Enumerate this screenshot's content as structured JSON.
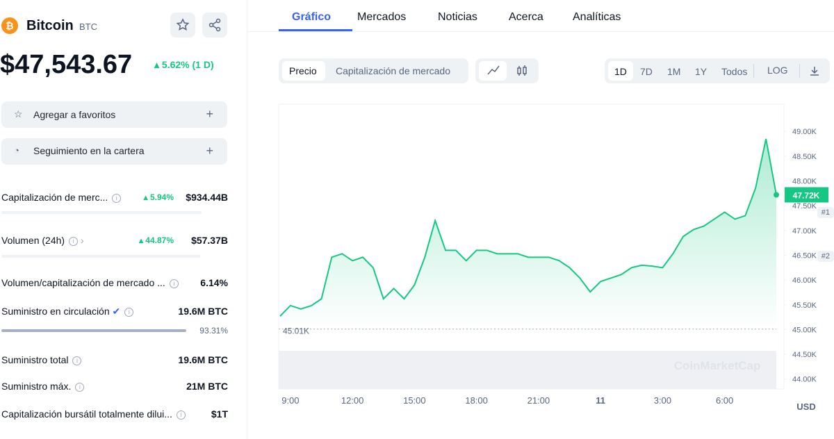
{
  "coin": {
    "name": "Bitcoin",
    "symbol": "BTC",
    "price": "$47,543.67",
    "change": "5.62% (1 D)"
  },
  "actions": [
    "Agregar a favoritos",
    "Seguimiento en la cartera"
  ],
  "stats": [
    {
      "label": "Capitalización de merc...",
      "change": "5.94%",
      "value": "$934.44B",
      "rank": "#1"
    },
    {
      "label": "Volumen (24h)",
      "change": "44.87%",
      "value": "$57.37B",
      "rank": "#2"
    },
    {
      "label": "Volumen/capitalización de mercado ...",
      "value": "6.14%"
    },
    {
      "label": "Suministro en circulación",
      "value": "19.6M BTC",
      "percent": "93.31%"
    },
    {
      "label": "Suministro total",
      "value": "19.6M BTC"
    },
    {
      "label": "Suministro máx.",
      "value": "21M BTC"
    },
    {
      "label": "Capitalización bursátil totalmente dilui...",
      "value": "$1T"
    }
  ],
  "tabs": [
    "Gráfico",
    "Mercados",
    "Noticias",
    "Acerca",
    "Analíticas"
  ],
  "toolbar": {
    "modes": [
      "Precio",
      "Capitalización de mercado"
    ],
    "ranges": [
      "1D",
      "7D",
      "1M",
      "1Y",
      "Todos",
      "LOG"
    ]
  },
  "chart_data": {
    "type": "line",
    "categories": [
      null,
      "9:00",
      null,
      null,
      null,
      null,
      null,
      "12:00",
      null,
      null,
      null,
      null,
      null,
      "15:00",
      null,
      null,
      null,
      null,
      null,
      "18:00",
      null,
      null,
      null,
      null,
      null,
      "21:00",
      null,
      null,
      null,
      null,
      null,
      "11",
      null,
      null,
      null,
      null,
      null,
      "3:00",
      null,
      null,
      null,
      null,
      null,
      "6:00",
      null,
      null,
      null,
      null,
      null
    ],
    "series": [
      {
        "name": "Precio",
        "color": "#16c784",
        "values": [
          45270,
          45485,
          45415,
          45480,
          45620,
          46460,
          46530,
          46390,
          46460,
          46250,
          45620,
          45830,
          45620,
          45900,
          46460,
          47200,
          46600,
          46600,
          46390,
          46600,
          46600,
          46530,
          46530,
          46530,
          46460,
          46460,
          46460,
          46390,
          46250,
          46040,
          45760,
          45970,
          46040,
          46110,
          46250,
          46300,
          46280,
          46250,
          46530,
          46880,
          47020,
          47090,
          47230,
          47370,
          47230,
          47300,
          47860,
          48850,
          47720
        ]
      }
    ],
    "ylim": [
      43800,
      49550
    ],
    "yticks": [
      {
        "value": 44000,
        "label": "44.00K"
      },
      {
        "value": 44500,
        "label": "44.50K"
      },
      {
        "value": 45000,
        "label": "45.00K"
      },
      {
        "value": 45500,
        "label": "45.50K"
      },
      {
        "value": 46000,
        "label": "46.00K"
      },
      {
        "value": 46500,
        "label": "46.50K"
      },
      {
        "value": 47000,
        "label": "47.00K"
      },
      {
        "value": 47500,
        "label": "47.50K"
      },
      {
        "value": 48000,
        "label": "48.00K"
      },
      {
        "value": 48500,
        "label": "48.50K"
      },
      {
        "value": 49000,
        "label": "49.00K"
      }
    ],
    "baseline": {
      "value": 45010,
      "label": "45.01K"
    },
    "current_label": "47.72K",
    "unit": "USD",
    "watermark": "CoinMarketCap"
  }
}
